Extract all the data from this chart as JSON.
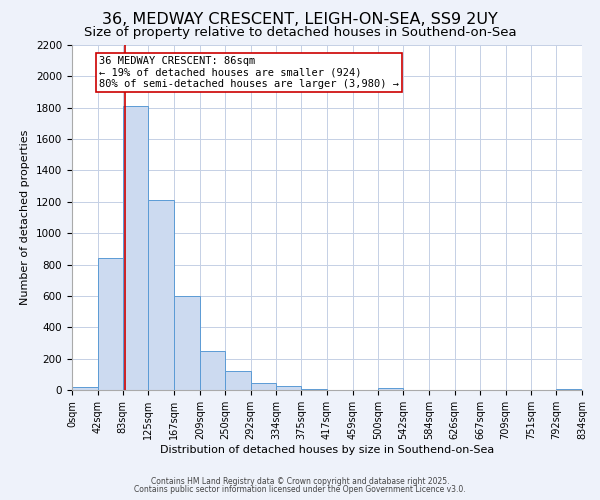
{
  "title": "36, MEDWAY CRESCENT, LEIGH-ON-SEA, SS9 2UY",
  "subtitle": "Size of property relative to detached houses in Southend-on-Sea",
  "xlabel": "Distribution of detached houses by size in Southend-on-Sea",
  "ylabel": "Number of detached properties",
  "bins": [
    0,
    42,
    83,
    125,
    167,
    209,
    250,
    292,
    334,
    375,
    417,
    459,
    500,
    542,
    584,
    626,
    667,
    709,
    751,
    792,
    834
  ],
  "counts": [
    20,
    840,
    1810,
    1210,
    600,
    250,
    120,
    45,
    25,
    5,
    0,
    0,
    10,
    0,
    0,
    0,
    0,
    0,
    0,
    5
  ],
  "bar_color": "#ccdaf0",
  "bar_edge_color": "#5b9bd5",
  "vline_x": 86,
  "vline_color": "#cc0000",
  "annotation_title": "36 MEDWAY CRESCENT: 86sqm",
  "annotation_line1": "← 19% of detached houses are smaller (924)",
  "annotation_line2": "80% of semi-detached houses are larger (3,980) →",
  "annotation_box_facecolor": "#ffffff",
  "annotation_box_edgecolor": "#cc0000",
  "ylim": [
    0,
    2200
  ],
  "yticks": [
    0,
    200,
    400,
    600,
    800,
    1000,
    1200,
    1400,
    1600,
    1800,
    2000,
    2200
  ],
  "tick_labels": [
    "0sqm",
    "42sqm",
    "83sqm",
    "125sqm",
    "167sqm",
    "209sqm",
    "250sqm",
    "292sqm",
    "334sqm",
    "375sqm",
    "417sqm",
    "459sqm",
    "500sqm",
    "542sqm",
    "584sqm",
    "626sqm",
    "667sqm",
    "709sqm",
    "751sqm",
    "792sqm",
    "834sqm"
  ],
  "footer1": "Contains HM Land Registry data © Crown copyright and database right 2025.",
  "footer2": "Contains public sector information licensed under the Open Government Licence v3.0.",
  "background_color": "#eef2fa",
  "plot_background": "#ffffff",
  "grid_color": "#c5d0e5",
  "title_fontsize": 11.5,
  "subtitle_fontsize": 9.5,
  "xlabel_fontsize": 8,
  "ylabel_fontsize": 8,
  "tick_fontsize": 7,
  "ytick_fontsize": 7.5,
  "footer_fontsize": 5.5,
  "annotation_fontsize": 7.5
}
